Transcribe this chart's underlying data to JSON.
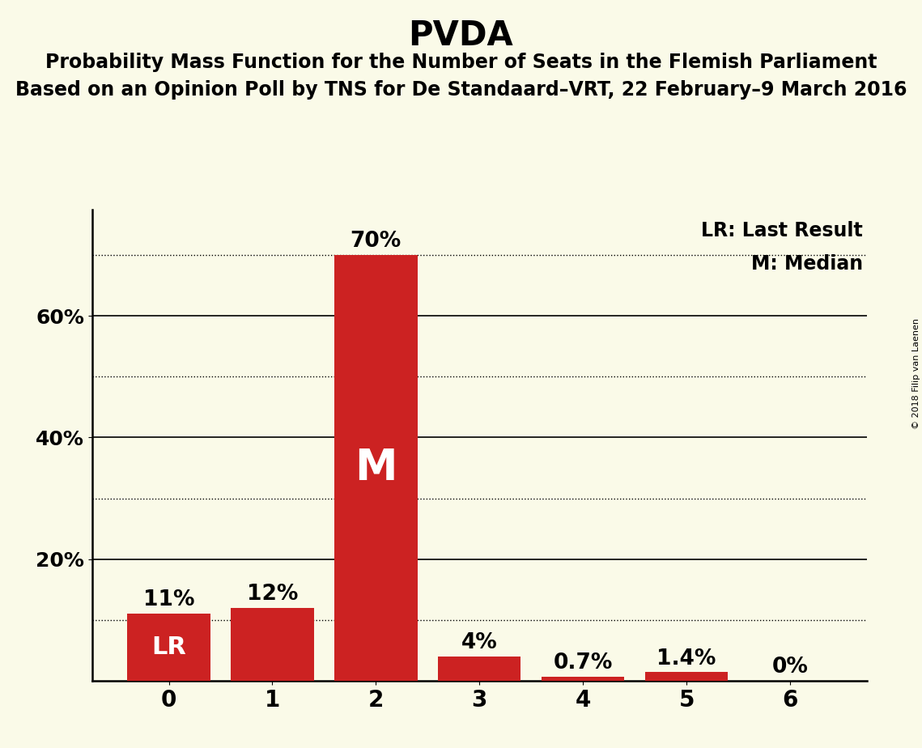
{
  "title": "PVDA",
  "subtitle1": "Probability Mass Function for the Number of Seats in the Flemish Parliament",
  "subtitle2": "Based on an Opinion Poll by TNS for De Standaard–VRT, 22 February–9 March 2016",
  "copyright": "© 2018 Filip van Laenen",
  "categories": [
    0,
    1,
    2,
    3,
    4,
    5,
    6
  ],
  "values": [
    0.11,
    0.12,
    0.7,
    0.04,
    0.007,
    0.014,
    0.0
  ],
  "bar_labels": [
    "11%",
    "12%",
    "70%",
    "4%",
    "0.7%",
    "1.4%",
    "0%"
  ],
  "bar_color": "#cc2222",
  "background_color": "#fafae8",
  "median_bar": 2,
  "lr_bar": 0,
  "median_label": "M",
  "lr_label": "LR",
  "legend_lr": "LR: Last Result",
  "legend_m": "M: Median",
  "solid_grid_ticks": [
    0.2,
    0.4,
    0.6
  ],
  "dotted_grid_ticks": [
    0.1,
    0.3,
    0.5,
    0.7
  ],
  "ytick_positions": [
    0.2,
    0.4,
    0.6
  ],
  "ytick_labels": [
    "20%",
    "40%",
    "60%"
  ],
  "ylim": [
    0,
    0.775
  ],
  "title_fontsize": 30,
  "subtitle_fontsize": 17,
  "bar_label_fontsize": 19,
  "inside_label_fontsize_lr": 22,
  "inside_label_fontsize_m": 38,
  "ytick_fontsize": 18,
  "xtick_fontsize": 20,
  "legend_fontsize": 17
}
